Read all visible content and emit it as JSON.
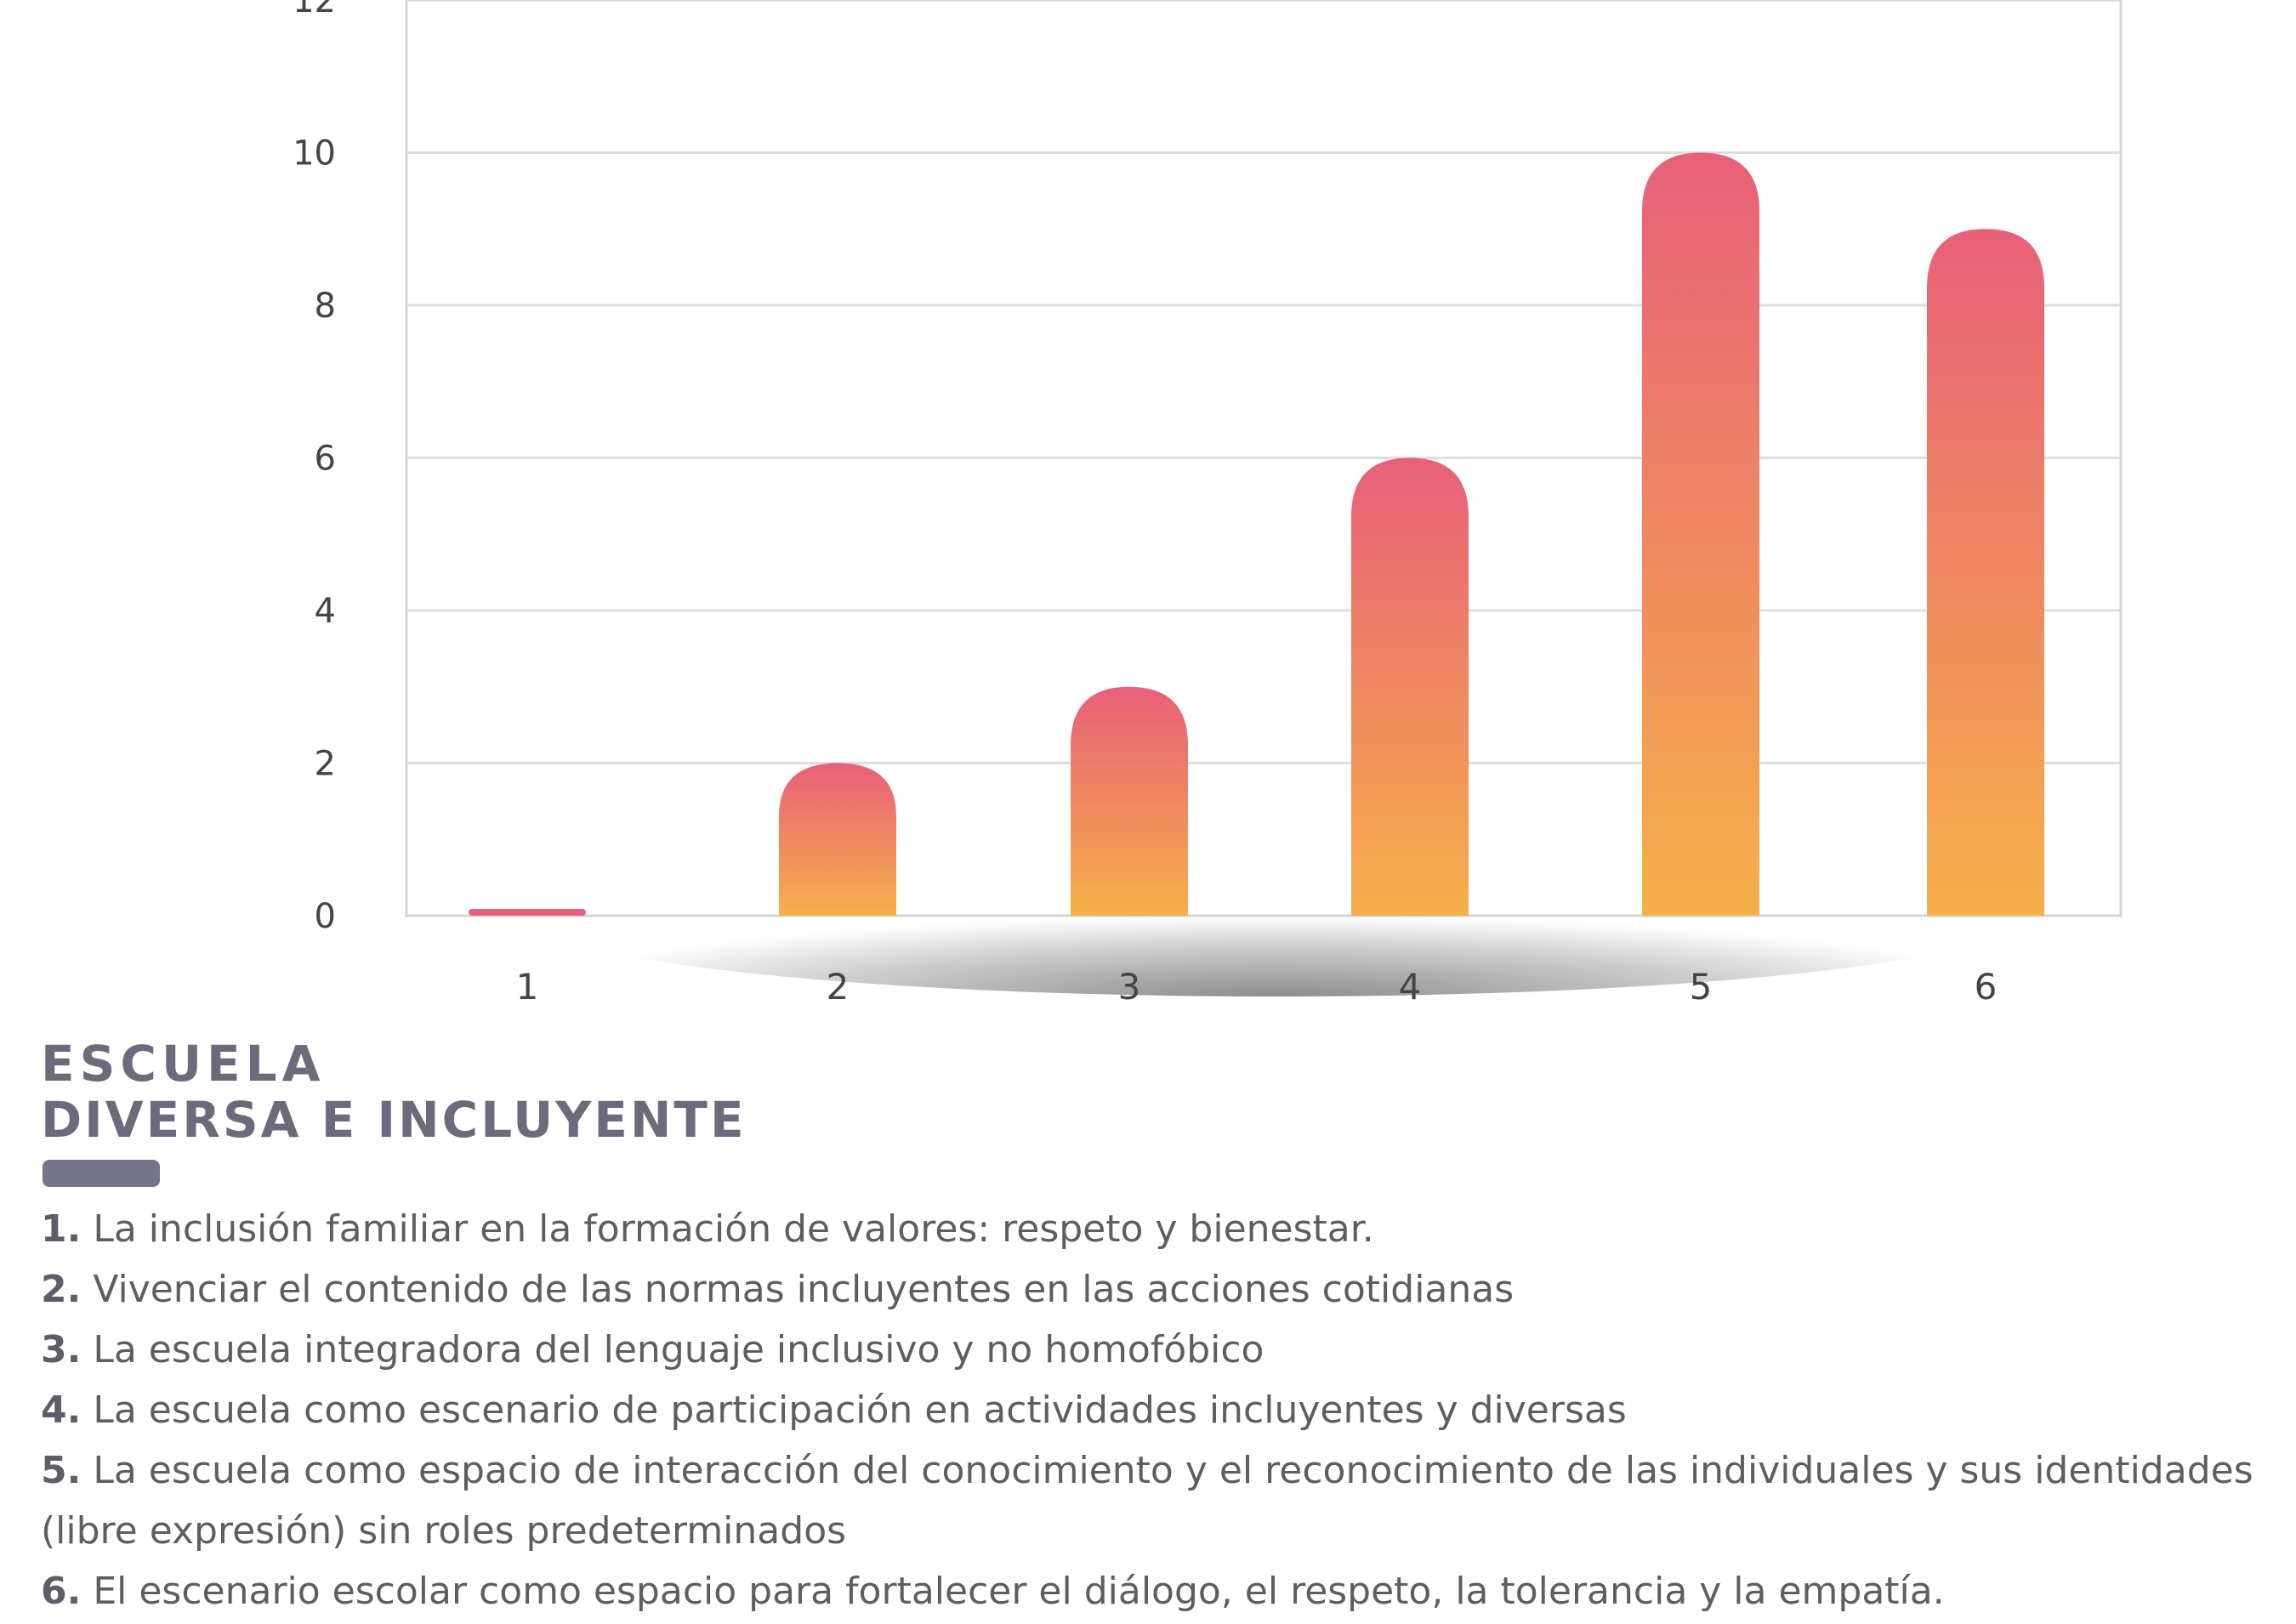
{
  "chart_data": {
    "type": "bar",
    "categories": [
      "1",
      "2",
      "3",
      "4",
      "5",
      "6"
    ],
    "values": [
      0.1,
      2,
      3,
      6,
      10,
      9
    ],
    "ylim": [
      0,
      12
    ],
    "yticks": [
      "0",
      "2",
      "4",
      "6",
      "8",
      "10",
      "12"
    ],
    "grid": true,
    "colors": {
      "top": "#e8607a",
      "bottom": "#f6b04a",
      "shadow": "#8a8a8a"
    }
  },
  "title": {
    "line1": "ESCUELA",
    "line2": "DIVERSA E INCLUYENTE"
  },
  "legend": [
    {
      "num": "1.",
      "text": "La inclusión familiar en la formación de valores: respeto y bienestar."
    },
    {
      "num": "2.",
      "text": "Vivenciar el contenido de las normas incluyentes en las acciones cotidianas"
    },
    {
      "num": "3.",
      "text": "La escuela integradora del lenguaje inclusivo y no homofóbico"
    },
    {
      "num": "4.",
      "text": "La escuela como escenario de participación en actividades incluyentes y diversas"
    },
    {
      "num": "5.",
      "text": "La escuela como espacio de interacción del conocimiento y el reconocimiento de las individuales y sus identidades (libre expresión) sin roles predeterminados"
    },
    {
      "num": "6.",
      "text": "El escenario escolar como espacio para fortalecer el diálogo, el respeto, la tolerancia y la empatía."
    }
  ]
}
